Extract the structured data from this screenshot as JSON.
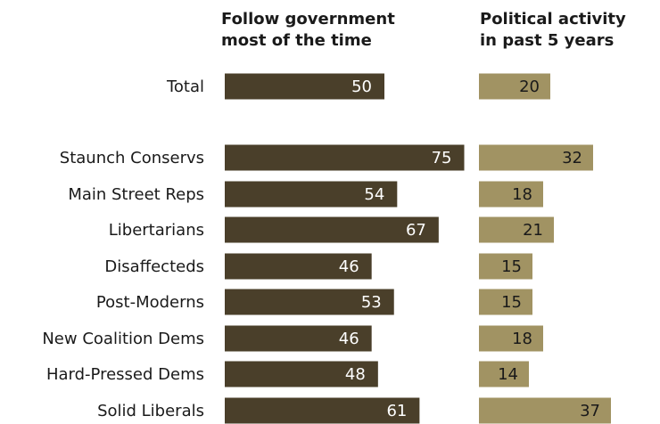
{
  "chart_data": {
    "type": "bar",
    "orientation": "horizontal",
    "categories": [
      "Total",
      "Staunch Conservs",
      "Main Street Reps",
      "Libertarians",
      "Disaffecteds",
      "Post-Moderns",
      "New Coalition Dems",
      "Hard-Pressed Dems",
      "Solid Liberals"
    ],
    "series": [
      {
        "name": "Follow government most of the time",
        "header_lines": [
          "Follow government",
          "most of the time"
        ],
        "color": "#4a3f2a",
        "values": [
          50,
          75,
          54,
          67,
          46,
          53,
          46,
          48,
          61
        ]
      },
      {
        "name": "Political activity in past 5 years",
        "header_lines": [
          "Political activity",
          "in past 5 years"
        ],
        "color": "#a19363",
        "values": [
          20,
          32,
          18,
          21,
          15,
          15,
          18,
          14,
          37
        ]
      }
    ],
    "grid": false,
    "legend": "none"
  }
}
